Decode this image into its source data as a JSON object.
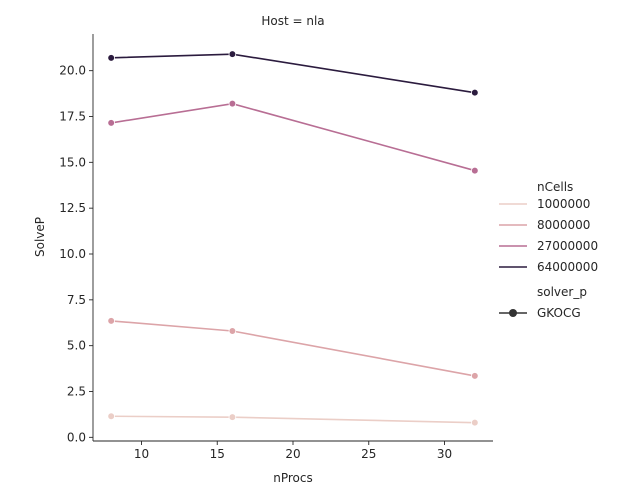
{
  "chart_data": {
    "type": "line",
    "title": "Host = nla",
    "xlabel": "nProcs",
    "ylabel": "SolveP",
    "x": [
      8,
      16,
      32
    ],
    "xlim": [
      6.8,
      33.2
    ],
    "ylim": [
      -0.2,
      22.0
    ],
    "xticks": [
      10,
      15,
      20,
      25,
      30
    ],
    "yticks": [
      0.0,
      2.5,
      5.0,
      7.5,
      10.0,
      12.5,
      15.0,
      17.5,
      20.0
    ],
    "grid": false,
    "legend_position": "right",
    "legend_hue_title": "nCells",
    "legend_style_title": "solver_p",
    "series": [
      {
        "name": "1000000",
        "color": "#ebcec7",
        "values": [
          1.15,
          1.1,
          0.8
        ]
      },
      {
        "name": "8000000",
        "color": "#dca4a8",
        "values": [
          6.35,
          5.8,
          3.35
        ]
      },
      {
        "name": "27000000",
        "color": "#b86e94",
        "values": [
          17.15,
          18.2,
          14.55
        ]
      },
      {
        "name": "64000000",
        "color": "#2b1b3e",
        "values": [
          20.7,
          20.9,
          18.8
        ]
      }
    ],
    "style_entries": [
      {
        "name": "GKOCG",
        "marker": "circle",
        "color": "#333333"
      }
    ]
  }
}
